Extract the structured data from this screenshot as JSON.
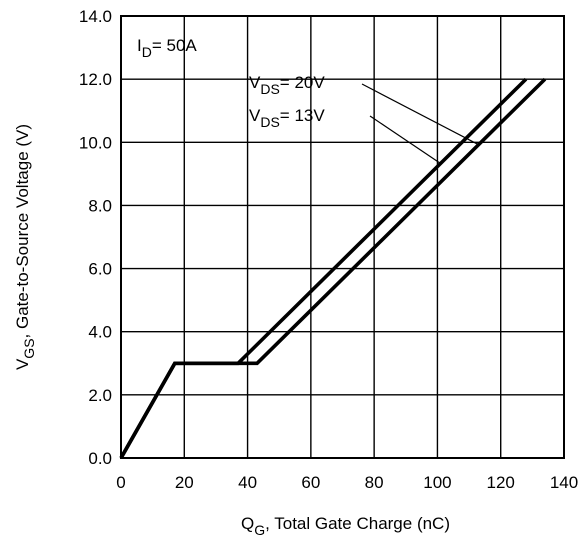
{
  "chart_data": {
    "type": "line",
    "xlabel": {
      "main": "Q",
      "sub": "G",
      "rest": ",  Total Gate Charge (nC)"
    },
    "ylabel": {
      "main": "V",
      "sub": "GS",
      "rest": ", Gate-to-Source Voltage (V)"
    },
    "xlim": [
      0,
      140
    ],
    "ylim": [
      0,
      14
    ],
    "x_ticks": [
      0,
      20,
      40,
      60,
      80,
      100,
      120,
      140
    ],
    "x_tick_labels": [
      "0",
      "20",
      "40",
      "60",
      "80",
      "100",
      "120",
      "140"
    ],
    "y_ticks": [
      0,
      2,
      4,
      6,
      8,
      10,
      12,
      14
    ],
    "y_tick_labels": [
      "0.0",
      "2.0",
      "4.0",
      "6.0",
      "8.0",
      "10.0",
      "12.0",
      "14.0"
    ],
    "grid": true,
    "annotations": [
      {
        "id": "id-label",
        "main": "I",
        "sub": "D",
        "rest": "= 50A"
      },
      {
        "id": "vds-20-label",
        "main": "V",
        "sub": "DS",
        "rest": "= 20V"
      },
      {
        "id": "vds-13-label",
        "main": "V",
        "sub": "DS",
        "rest": "= 13V"
      }
    ],
    "series": [
      {
        "x": [
          0,
          17,
          37,
          128
        ],
        "y": [
          0,
          3.0,
          3.0,
          12.0
        ]
      },
      {
        "x": [
          0,
          17,
          43,
          134
        ],
        "y": [
          0,
          3.0,
          3.0,
          12.0
        ]
      }
    ]
  }
}
